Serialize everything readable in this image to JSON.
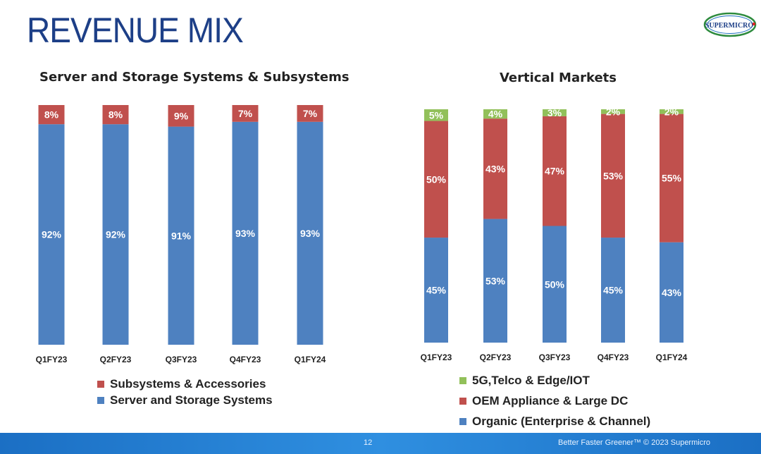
{
  "page": {
    "title": "REVENUE MIX",
    "logo_text": "SUPERMICRO",
    "page_number": "12",
    "footer_tagline": "Better Faster Greener™  © 2023 Supermicro"
  },
  "colors": {
    "blue": "#4e81c0",
    "red": "#c0504d",
    "green": "#92c05a",
    "title": "#1d3f87"
  },
  "chart_data": [
    {
      "type": "bar",
      "stacked": true,
      "title": "Server and Storage Systems & Subsystems",
      "categories": [
        "Q1FY23",
        "Q2FY23",
        "Q3FY23",
        "Q4FY23",
        "Q1FY24"
      ],
      "series": [
        {
          "name": "Server and Storage Systems",
          "values": [
            92,
            92,
            91,
            93,
            93
          ],
          "labels": [
            "92%",
            "92%",
            "91%",
            "93%",
            "93%"
          ],
          "color": "#4e81c0"
        },
        {
          "name": "Subsystems & Accessories",
          "values": [
            8,
            8,
            9,
            7,
            7
          ],
          "labels": [
            "8%",
            "8%",
            "9%",
            "7%",
            "7%"
          ],
          "color": "#c0504d"
        }
      ],
      "legend": [
        "Subsystems & Accessories",
        "Server and Storage Systems"
      ],
      "ylim": [
        0,
        100
      ],
      "xlabel": "",
      "ylabel": "",
      "grid": false,
      "legend_position": "bottom"
    },
    {
      "type": "bar",
      "stacked": true,
      "title": "Vertical Markets",
      "categories": [
        "Q1FY23",
        "Q2FY23",
        "Q3FY23",
        "Q4FY23",
        "Q1FY24"
      ],
      "series": [
        {
          "name": "Organic (Enterprise & Channel)",
          "values": [
            45,
            53,
            50,
            45,
            43
          ],
          "labels": [
            "45%",
            "53%",
            "50%",
            "45%",
            "43%"
          ],
          "color": "#4e81c0"
        },
        {
          "name": "OEM Appliance & Large DC",
          "values": [
            50,
            43,
            47,
            53,
            55
          ],
          "labels": [
            "50%",
            "43%",
            "47%",
            "53%",
            "55%"
          ],
          "color": "#c0504d"
        },
        {
          "name": "5G,Telco & Edge/IOT",
          "values": [
            5,
            4,
            3,
            2,
            2
          ],
          "labels": [
            "5%",
            "4%",
            "3%",
            "2%",
            "2%"
          ],
          "color": "#92c05a"
        }
      ],
      "legend": [
        "5G,Telco & Edge/IOT",
        "OEM Appliance & Large DC",
        "Organic (Enterprise & Channel)"
      ],
      "ylim": [
        0,
        100
      ],
      "xlabel": "",
      "ylabel": "",
      "grid": false,
      "legend_position": "bottom"
    }
  ]
}
